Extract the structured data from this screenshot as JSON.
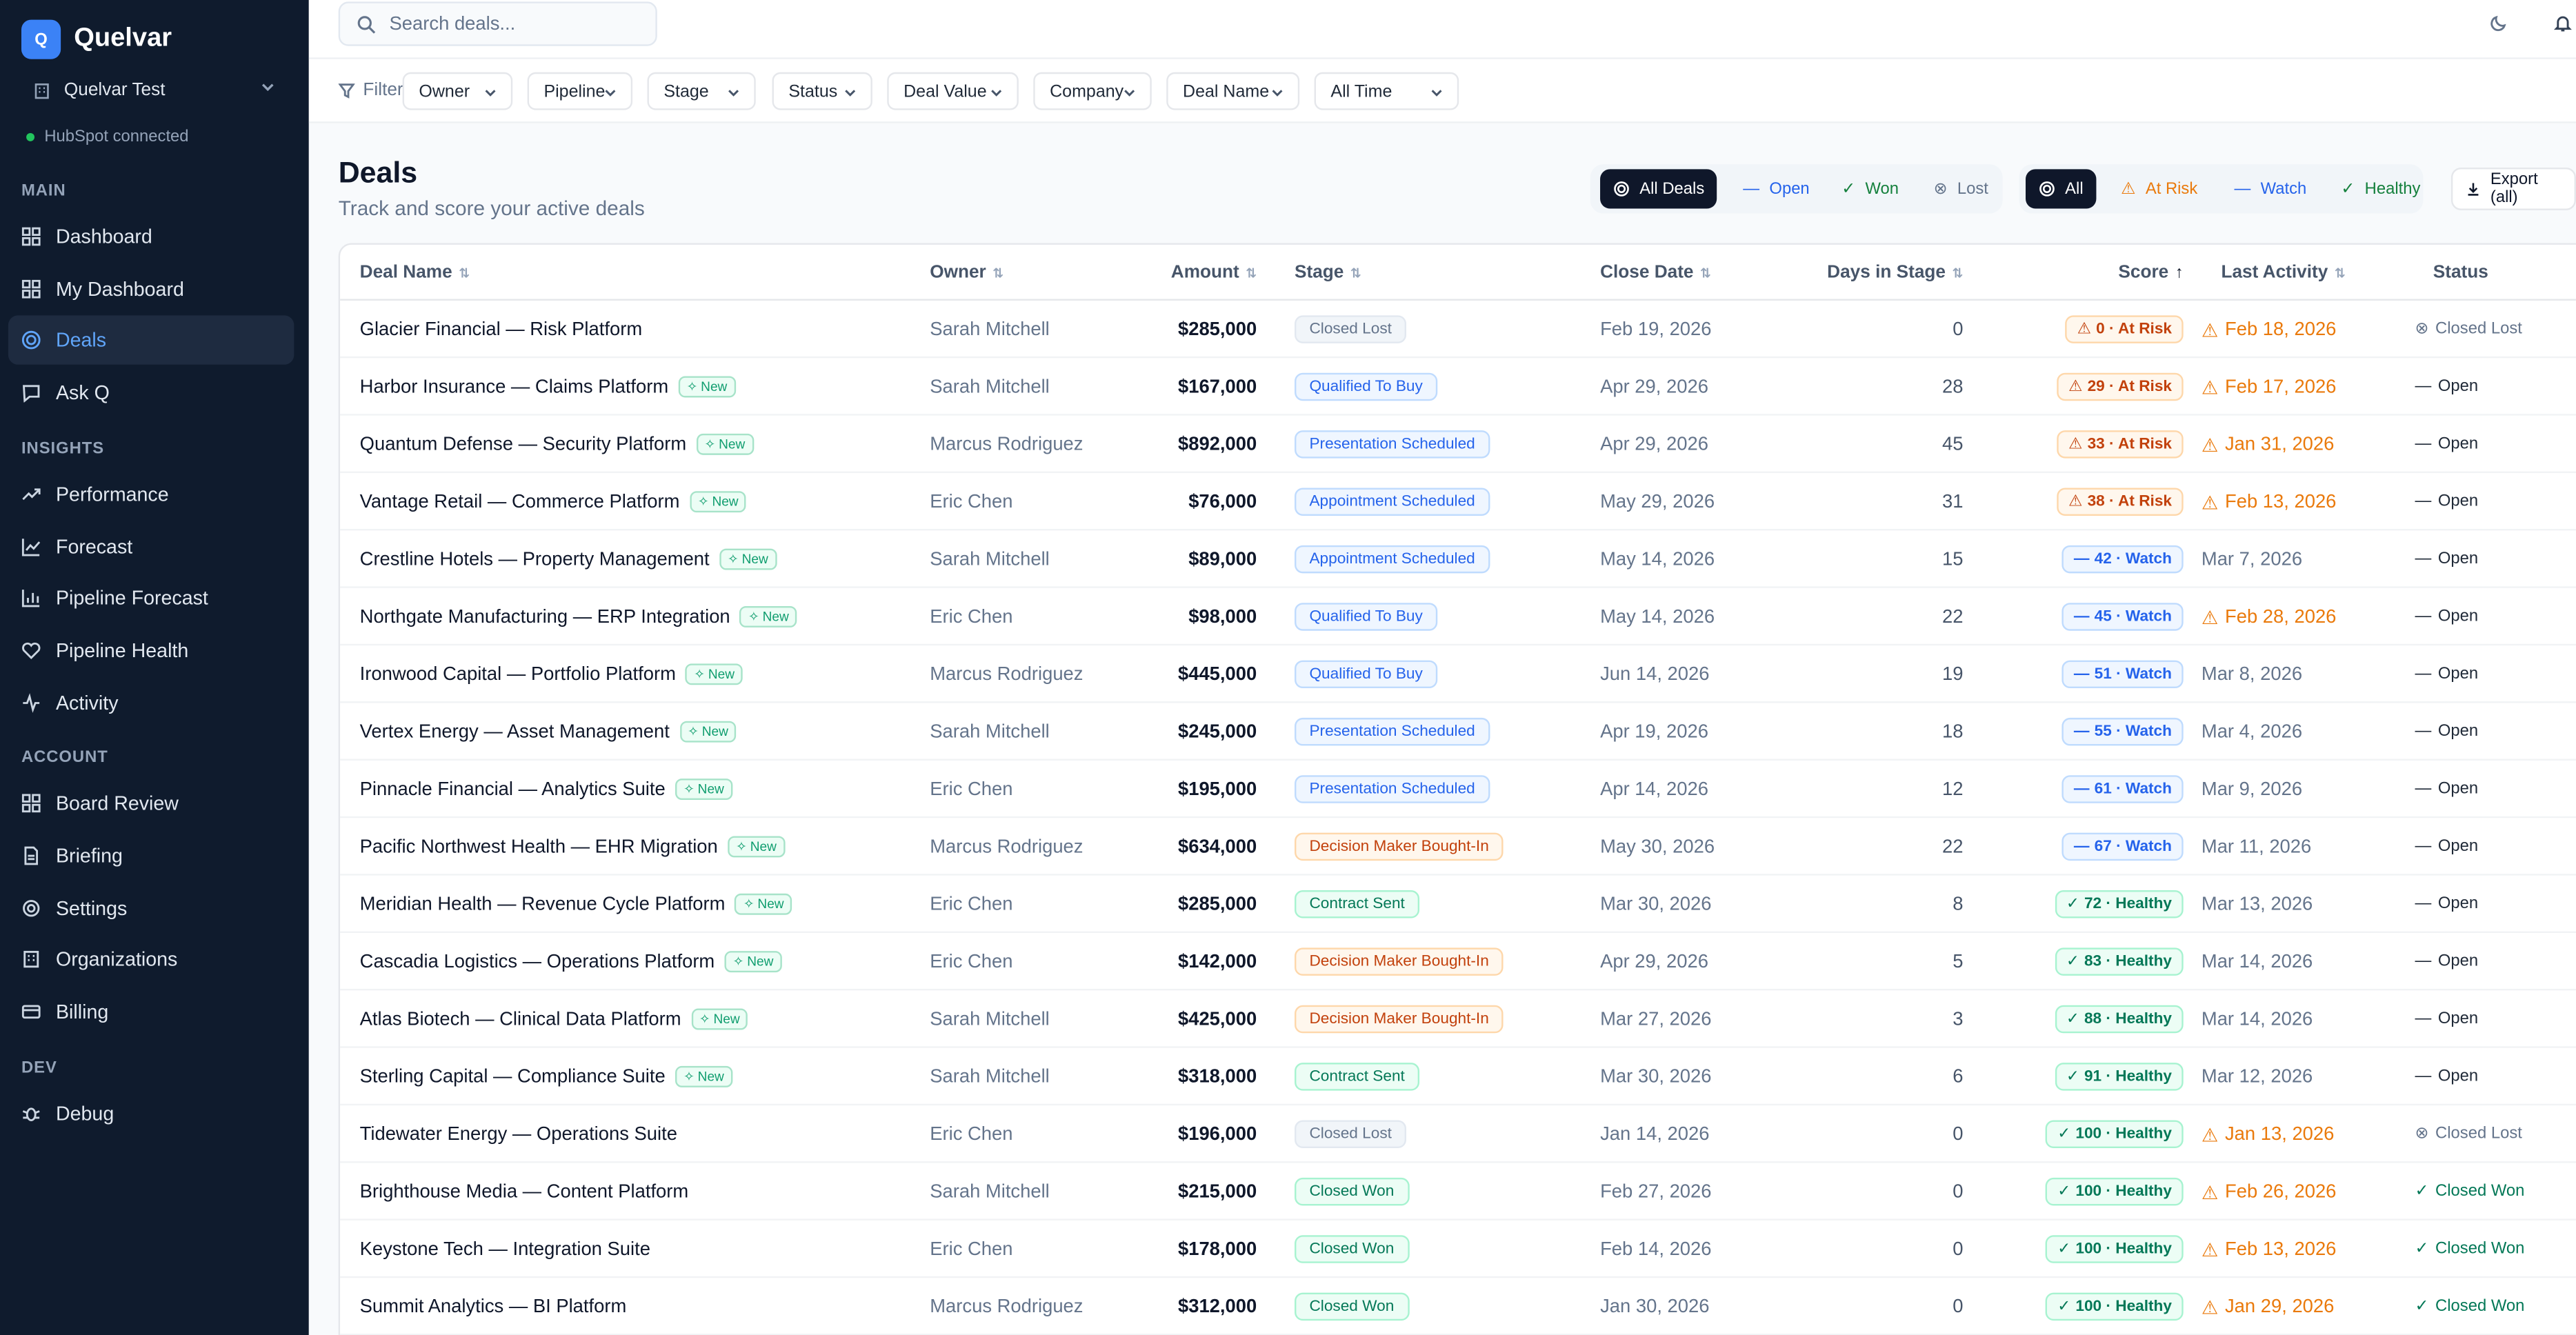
{
  "brand": {
    "logo_letter": "Q",
    "name": "Quelvar"
  },
  "workspace": {
    "name": "Quelvar Test"
  },
  "integration": {
    "status": "HubSpot connected"
  },
  "sidebar": {
    "sections": [
      {
        "title": "MAIN",
        "items": [
          {
            "label": "Dashboard",
            "icon": "grid-icon",
            "active": false
          },
          {
            "label": "My Dashboard",
            "icon": "grid-icon",
            "active": false
          },
          {
            "label": "Deals",
            "icon": "target-icon",
            "active": true
          },
          {
            "label": "Ask Q",
            "icon": "chat-icon",
            "active": false
          }
        ]
      },
      {
        "title": "INSIGHTS",
        "items": [
          {
            "label": "Performance",
            "icon": "trend-icon",
            "active": false
          },
          {
            "label": "Forecast",
            "icon": "line-chart-icon",
            "active": false
          },
          {
            "label": "Pipeline Forecast",
            "icon": "bar-chart-icon",
            "active": false
          },
          {
            "label": "Pipeline Health",
            "icon": "heart-pulse-icon",
            "active": false
          },
          {
            "label": "Activity",
            "icon": "activity-icon",
            "active": false
          }
        ]
      },
      {
        "title": "ACCOUNT",
        "items": [
          {
            "label": "Board Review",
            "icon": "grid-icon",
            "active": false
          },
          {
            "label": "Briefing",
            "icon": "document-icon",
            "active": false
          },
          {
            "label": "Settings",
            "icon": "gear-icon",
            "active": false
          },
          {
            "label": "Organizations",
            "icon": "building-icon",
            "active": false
          },
          {
            "label": "Billing",
            "icon": "card-icon",
            "active": false
          }
        ]
      },
      {
        "title": "DEV",
        "items": [
          {
            "label": "Debug",
            "icon": "bug-icon",
            "active": false
          }
        ]
      }
    ]
  },
  "search": {
    "placeholder": "Search deals..."
  },
  "filters": {
    "label": "Filters",
    "buttons": [
      "Owner",
      "Pipeline",
      "Stage",
      "Status",
      "Deal Value",
      "Company",
      "Deal Name",
      "All Time"
    ]
  },
  "page": {
    "title": "Deals",
    "subtitle": "Track and score your active deals"
  },
  "deal_tabs": [
    "All Deals",
    "Open",
    "Won",
    "Lost"
  ],
  "health_tabs": [
    "All",
    "At Risk",
    "Watch",
    "Healthy"
  ],
  "export_label": "Export (all)",
  "colors": {
    "sidebar_bg": "#0f1b2d",
    "accent": "#3b82f6",
    "risk": "#ea7a0c",
    "healthy": "#047857"
  },
  "table": {
    "headers": [
      "Deal Name",
      "Owner",
      "Amount",
      "Stage",
      "Close Date",
      "Days in Stage",
      "Score",
      "Last Activity",
      "Status"
    ],
    "new_label": "New",
    "rows": [
      {
        "deal": "Glacier Financial — Risk Platform",
        "new": false,
        "owner": "Sarah Mitchell",
        "amount": "$285,000",
        "stage": "Closed Lost",
        "stage_color": "gray",
        "close": "Feb 19, 2026",
        "days": "0",
        "score": "0 · At Risk",
        "score_type": "risk",
        "activity": "Feb 18, 2026",
        "activity_warn": true,
        "status": "Closed Lost",
        "status_type": "lost"
      },
      {
        "deal": "Harbor Insurance — Claims Platform",
        "new": true,
        "owner": "Sarah Mitchell",
        "amount": "$167,000",
        "stage": "Qualified To Buy",
        "stage_color": "blue",
        "close": "Apr 29, 2026",
        "days": "28",
        "score": "29 · At Risk",
        "score_type": "risk",
        "activity": "Feb 17, 2026",
        "activity_warn": true,
        "status": "Open",
        "status_type": "open"
      },
      {
        "deal": "Quantum Defense — Security Platform",
        "new": true,
        "owner": "Marcus Rodriguez",
        "amount": "$892,000",
        "stage": "Presentation Scheduled",
        "stage_color": "blue",
        "close": "Apr 29, 2026",
        "days": "45",
        "score": "33 · At Risk",
        "score_type": "risk",
        "activity": "Jan 31, 2026",
        "activity_warn": true,
        "status": "Open",
        "status_type": "open"
      },
      {
        "deal": "Vantage Retail — Commerce Platform",
        "new": true,
        "owner": "Eric Chen",
        "amount": "$76,000",
        "stage": "Appointment Scheduled",
        "stage_color": "blue",
        "close": "May 29, 2026",
        "days": "31",
        "score": "38 · At Risk",
        "score_type": "risk",
        "activity": "Feb 13, 2026",
        "activity_warn": true,
        "status": "Open",
        "status_type": "open"
      },
      {
        "deal": "Crestline Hotels — Property Management",
        "new": true,
        "owner": "Sarah Mitchell",
        "amount": "$89,000",
        "stage": "Appointment Scheduled",
        "stage_color": "blue",
        "close": "May 14, 2026",
        "days": "15",
        "score": "42 · Watch",
        "score_type": "watch",
        "activity": "Mar 7, 2026",
        "activity_warn": false,
        "status": "Open",
        "status_type": "open"
      },
      {
        "deal": "Northgate Manufacturing — ERP Integration",
        "new": true,
        "owner": "Eric Chen",
        "amount": "$98,000",
        "stage": "Qualified To Buy",
        "stage_color": "blue",
        "close": "May 14, 2026",
        "days": "22",
        "score": "45 · Watch",
        "score_type": "watch",
        "activity": "Feb 28, 2026",
        "activity_warn": true,
        "status": "Open",
        "status_type": "open"
      },
      {
        "deal": "Ironwood Capital — Portfolio Platform",
        "new": true,
        "owner": "Marcus Rodriguez",
        "amount": "$445,000",
        "stage": "Qualified To Buy",
        "stage_color": "blue",
        "close": "Jun 14, 2026",
        "days": "19",
        "score": "51 · Watch",
        "score_type": "watch",
        "activity": "Mar 8, 2026",
        "activity_warn": false,
        "status": "Open",
        "status_type": "open"
      },
      {
        "deal": "Vertex Energy — Asset Management",
        "new": true,
        "owner": "Sarah Mitchell",
        "amount": "$245,000",
        "stage": "Presentation Scheduled",
        "stage_color": "blue",
        "close": "Apr 19, 2026",
        "days": "18",
        "score": "55 · Watch",
        "score_type": "watch",
        "activity": "Mar 4, 2026",
        "activity_warn": false,
        "status": "Open",
        "status_type": "open"
      },
      {
        "deal": "Pinnacle Financial — Analytics Suite",
        "new": true,
        "owner": "Eric Chen",
        "amount": "$195,000",
        "stage": "Presentation Scheduled",
        "stage_color": "blue",
        "close": "Apr 14, 2026",
        "days": "12",
        "score": "61 · Watch",
        "score_type": "watch",
        "activity": "Mar 9, 2026",
        "activity_warn": false,
        "status": "Open",
        "status_type": "open"
      },
      {
        "deal": "Pacific Northwest Health — EHR Migration",
        "new": true,
        "owner": "Marcus Rodriguez",
        "amount": "$634,000",
        "stage": "Decision Maker Bought-In",
        "stage_color": "orange",
        "close": "May 30, 2026",
        "days": "22",
        "score": "67 · Watch",
        "score_type": "watch",
        "activity": "Mar 11, 2026",
        "activity_warn": false,
        "status": "Open",
        "status_type": "open"
      },
      {
        "deal": "Meridian Health — Revenue Cycle Platform",
        "new": true,
        "owner": "Eric Chen",
        "amount": "$285,000",
        "stage": "Contract Sent",
        "stage_color": "green",
        "close": "Mar 30, 2026",
        "days": "8",
        "score": "72 · Healthy",
        "score_type": "healthy",
        "activity": "Mar 13, 2026",
        "activity_warn": false,
        "status": "Open",
        "status_type": "open"
      },
      {
        "deal": "Cascadia Logistics — Operations Platform",
        "new": true,
        "owner": "Eric Chen",
        "amount": "$142,000",
        "stage": "Decision Maker Bought-In",
        "stage_color": "orange",
        "close": "Apr 29, 2026",
        "days": "5",
        "score": "83 · Healthy",
        "score_type": "healthy",
        "activity": "Mar 14, 2026",
        "activity_warn": false,
        "status": "Open",
        "status_type": "open"
      },
      {
        "deal": "Atlas Biotech — Clinical Data Platform",
        "new": true,
        "owner": "Sarah Mitchell",
        "amount": "$425,000",
        "stage": "Decision Maker Bought-In",
        "stage_color": "orange",
        "close": "Mar 27, 2026",
        "days": "3",
        "score": "88 · Healthy",
        "score_type": "healthy",
        "activity": "Mar 14, 2026",
        "activity_warn": false,
        "status": "Open",
        "status_type": "open"
      },
      {
        "deal": "Sterling Capital — Compliance Suite",
        "new": true,
        "owner": "Sarah Mitchell",
        "amount": "$318,000",
        "stage": "Contract Sent",
        "stage_color": "green",
        "close": "Mar 30, 2026",
        "days": "6",
        "score": "91 · Healthy",
        "score_type": "healthy",
        "activity": "Mar 12, 2026",
        "activity_warn": false,
        "status": "Open",
        "status_type": "open"
      },
      {
        "deal": "Tidewater Energy — Operations Suite",
        "new": false,
        "owner": "Eric Chen",
        "amount": "$196,000",
        "stage": "Closed Lost",
        "stage_color": "gray",
        "close": "Jan 14, 2026",
        "days": "0",
        "score": "100 · Healthy",
        "score_type": "healthy",
        "activity": "Jan 13, 2026",
        "activity_warn": true,
        "status": "Closed Lost",
        "status_type": "lost"
      },
      {
        "deal": "Brighthouse Media — Content Platform",
        "new": false,
        "owner": "Sarah Mitchell",
        "amount": "$215,000",
        "stage": "Closed Won",
        "stage_color": "green",
        "close": "Feb 27, 2026",
        "days": "0",
        "score": "100 · Healthy",
        "score_type": "healthy",
        "activity": "Feb 26, 2026",
        "activity_warn": true,
        "status": "Closed Won",
        "status_type": "won"
      },
      {
        "deal": "Keystone Tech — Integration Suite",
        "new": false,
        "owner": "Eric Chen",
        "amount": "$178,000",
        "stage": "Closed Won",
        "stage_color": "green",
        "close": "Feb 14, 2026",
        "days": "0",
        "score": "100 · Healthy",
        "score_type": "healthy",
        "activity": "Feb 13, 2026",
        "activity_warn": true,
        "status": "Closed Won",
        "status_type": "won"
      },
      {
        "deal": "Summit Analytics — BI Platform",
        "new": false,
        "owner": "Marcus Rodriguez",
        "amount": "$312,000",
        "stage": "Closed Won",
        "stage_color": "green",
        "close": "Jan 30, 2026",
        "days": "0",
        "score": "100 · Healthy",
        "score_type": "healthy",
        "activity": "Jan 29, 2026",
        "activity_warn": true,
        "status": "Closed Won",
        "status_type": "won"
      }
    ]
  }
}
